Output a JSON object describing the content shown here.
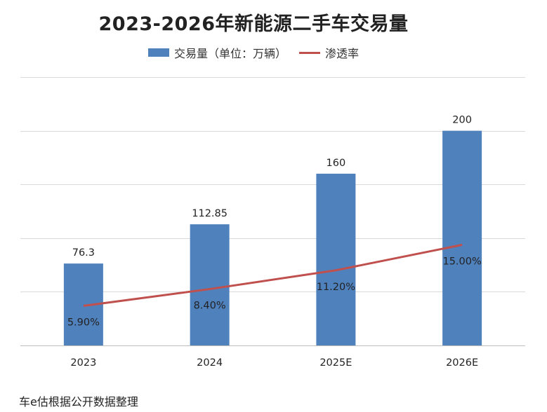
{
  "colors": {
    "bar": "#4f81bd",
    "line": "#c0504d",
    "grid": "#d9d9d9",
    "text": "#222222"
  },
  "chart_data": {
    "type": "bar",
    "title": "2023-2026年新能源二手车交易量",
    "categories": [
      "2023",
      "2024",
      "2025E",
      "2026E"
    ],
    "series": [
      {
        "name": "交易量（单位：万辆）",
        "type": "bar",
        "values": [
          76.3,
          112.85,
          160,
          200
        ],
        "labels": [
          "76.3",
          "112.85",
          "160",
          "200"
        ]
      },
      {
        "name": "渗透率",
        "type": "line",
        "values": [
          5.9,
          8.4,
          11.2,
          15.0
        ],
        "labels": [
          "5.90%",
          "8.40%",
          "11.20%",
          "15.00%"
        ]
      }
    ],
    "ylim": [
      0,
      250
    ],
    "y2lim": [
      0,
      40
    ],
    "y_axis_visible": false,
    "grid": true,
    "legend_position": "top-center"
  },
  "source_note": "车e估根据公开数据整理"
}
